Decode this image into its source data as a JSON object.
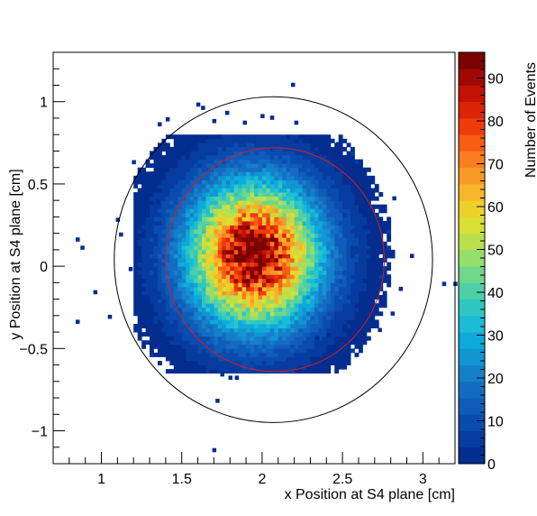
{
  "chart_data": {
    "type": "heatmap",
    "title": "",
    "xlabel": "x Position at S4 plane [cm]",
    "ylabel": "y Position at S4 plane [cm]",
    "zlabel": "Number of Events",
    "xlim": [
      0.7,
      3.2
    ],
    "ylim": [
      -1.2,
      1.3
    ],
    "zlim": [
      0,
      96
    ],
    "x_ticks": [
      "1",
      "1.5",
      "2",
      "2.5",
      "3"
    ],
    "x_tick_values": [
      1,
      1.5,
      2,
      2.5,
      3
    ],
    "y_ticks": [
      "−1",
      "−0.5",
      "0",
      "0.5",
      "1"
    ],
    "y_tick_values": [
      -1,
      -0.5,
      0,
      0.5,
      1
    ],
    "z_ticks": [
      "0",
      "10",
      "20",
      "30",
      "40",
      "50",
      "60",
      "70",
      "80",
      "90"
    ],
    "z_tick_values": [
      0,
      10,
      20,
      30,
      40,
      50,
      60,
      70,
      80,
      90
    ],
    "bin_width": 0.025,
    "distribution": {
      "center_x": 1.95,
      "center_y": 0.07,
      "sigma_x": 0.28,
      "sigma_y": 0.3,
      "peak_count": 95
    },
    "outliers": [
      [
        0.84,
        0.15
      ],
      [
        0.87,
        0.1
      ],
      [
        0.84,
        -0.35
      ],
      [
        0.95,
        -0.17
      ],
      [
        1.04,
        -0.32
      ],
      [
        1.09,
        0.27
      ],
      [
        1.11,
        0.18
      ],
      [
        1.22,
        0.16
      ],
      [
        1.34,
        0.38
      ],
      [
        1.3,
        0.55
      ],
      [
        1.19,
        0.62
      ],
      [
        1.17,
        -0.03
      ],
      [
        1.24,
        -0.32
      ],
      [
        1.36,
        -0.37
      ],
      [
        1.4,
        -0.47
      ],
      [
        1.42,
        -0.53
      ],
      [
        1.55,
        -0.6
      ],
      [
        1.74,
        -0.67
      ],
      [
        1.79,
        -0.69
      ],
      [
        1.83,
        -0.69
      ],
      [
        1.71,
        -0.83
      ],
      [
        1.69,
        -1.13
      ],
      [
        2.33,
        -0.45
      ],
      [
        2.4,
        -0.43
      ],
      [
        2.5,
        -0.4
      ],
      [
        2.72,
        -0.4
      ],
      [
        2.8,
        -0.3
      ],
      [
        2.85,
        -0.15
      ],
      [
        2.71,
        0.07
      ],
      [
        2.92,
        0.05
      ],
      [
        3.12,
        -0.12
      ],
      [
        3.19,
        -0.12
      ],
      [
        2.81,
        0.4
      ],
      [
        2.63,
        0.46
      ],
      [
        2.56,
        0.58
      ],
      [
        2.46,
        0.73
      ],
      [
        2.3,
        0.7
      ],
      [
        2.2,
        0.86
      ],
      [
        2.18,
        1.09
      ],
      [
        2.05,
        0.89
      ],
      [
        1.99,
        0.9
      ],
      [
        1.88,
        0.86
      ],
      [
        1.59,
        0.97
      ],
      [
        1.69,
        0.87
      ],
      [
        1.77,
        0.92
      ],
      [
        1.62,
        0.95
      ],
      [
        1.4,
        0.88
      ],
      [
        1.35,
        0.85
      ]
    ],
    "circles": [
      {
        "name": "",
        "cx": 2.07,
        "cy": 0.04,
        "r": 0.99,
        "color": "#000000"
      },
      {
        "name": "",
        "cx": 2.08,
        "cy": 0.04,
        "r": 0.68,
        "color": "#d0202a"
      }
    ],
    "colors": {
      "palette": [
        "#032d8f",
        "#063c9f",
        "#0a4cad",
        "#0f5cb9",
        "#146cc2",
        "#1580c9",
        "#1295d3",
        "#0eaadb",
        "#1abcd6",
        "#2ec7c2",
        "#4ecfa8",
        "#6fd68b",
        "#95de6c",
        "#badf4d",
        "#d9df33",
        "#eed02a",
        "#f6b52b",
        "#f99a28",
        "#fb7e20",
        "#f85d13",
        "#ef3b0a",
        "#db2406",
        "#c21205",
        "#a00803",
        "#7a0402"
      ],
      "axis": "#000000",
      "background": "#ffffff"
    }
  }
}
